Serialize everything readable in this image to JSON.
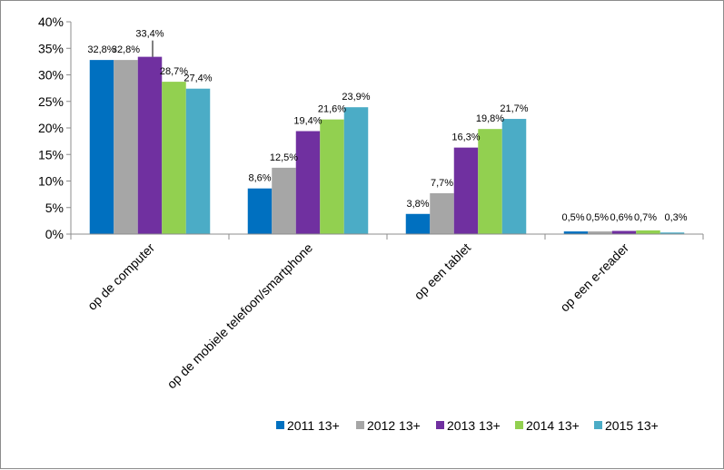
{
  "chart_data": {
    "type": "bar",
    "categories": [
      "op de computer",
      "op de mobiele telefoon/smartphone",
      "op een tablet",
      "op een e-reader"
    ],
    "series": [
      {
        "name": "2011 13+",
        "color": "#0070C0",
        "values": [
          32.8,
          8.6,
          3.8,
          0.5
        ],
        "labels": [
          "32,8%",
          "8,6%",
          "3,8%",
          "0,5%"
        ]
      },
      {
        "name": "2012 13+",
        "color": "#A6A6A6",
        "values": [
          32.8,
          12.5,
          7.7,
          0.5
        ],
        "labels": [
          "32,8%",
          "12,5%",
          "7,7%",
          "0,5%"
        ]
      },
      {
        "name": "2013 13+",
        "color": "#7030A0",
        "values": [
          33.4,
          19.4,
          16.3,
          0.6
        ],
        "labels": [
          "33,4%",
          "19,4%",
          "16,3%",
          "0,6%"
        ]
      },
      {
        "name": "2014 13+",
        "color": "#92D050",
        "values": [
          28.7,
          21.6,
          19.8,
          0.7
        ],
        "labels": [
          "28,7%",
          "21,6%",
          "19,8%",
          "0,7%"
        ]
      },
      {
        "name": "2015 13+",
        "color": "#4BACC6",
        "values": [
          27.4,
          23.9,
          21.7,
          0.3
        ],
        "labels": [
          "27,4%",
          "23,9%",
          "21,7%",
          "0,3%"
        ]
      }
    ],
    "ylim": [
      0,
      40
    ],
    "yticks": [
      0,
      5,
      10,
      15,
      20,
      25,
      30,
      35,
      40
    ],
    "ytick_labels": [
      "0%",
      "5%",
      "10%",
      "15%",
      "20%",
      "25%",
      "30%",
      "35%",
      "40%"
    ],
    "grid": false,
    "legend_position": "bottom-right"
  }
}
